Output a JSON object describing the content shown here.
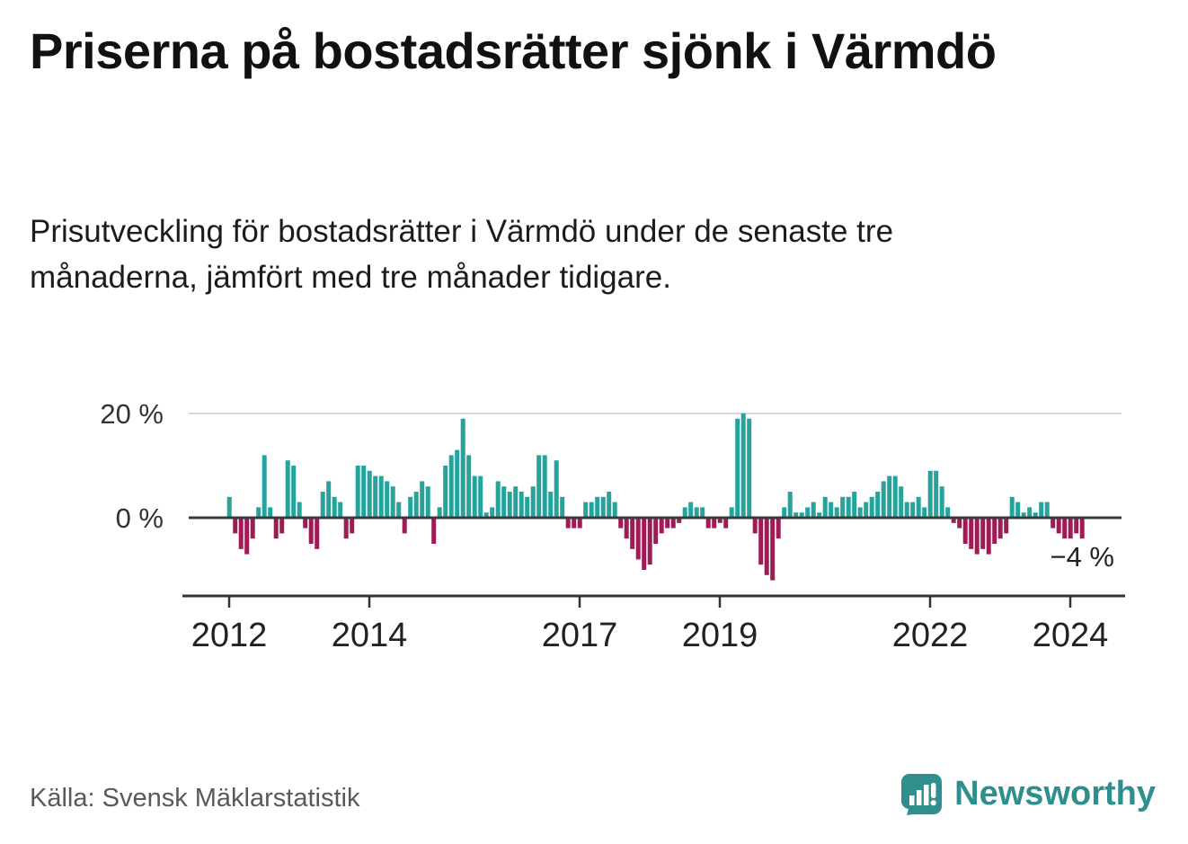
{
  "header": {
    "title": "Priserna på bostadsrätter sjönk i Värmdö",
    "subtitle": "Prisutveckling för bostadsrätter i Värmdö under de senaste tre månaderna, jämfört med tre månader tidigare."
  },
  "chart_data": {
    "type": "bar",
    "title": "Prisutveckling för bostadsrätter i Värmdö, 3 månader jämfört med föregående 3 månader",
    "unit": "%",
    "start_year": 2012,
    "start_month": 1,
    "values": [
      4,
      -3,
      -6,
      -7,
      -4,
      2,
      12,
      2,
      -4,
      -3,
      11,
      10,
      3,
      -2,
      -5,
      -6,
      5,
      7,
      4,
      3,
      -4,
      -3,
      10,
      10,
      9,
      8,
      8,
      7,
      6,
      3,
      -3,
      4,
      5,
      7,
      6,
      -5,
      2,
      10,
      12,
      13,
      19,
      12,
      8,
      8,
      1,
      2,
      7,
      6,
      5,
      6,
      5,
      4,
      6,
      12,
      12,
      5,
      11,
      4,
      -2,
      -2,
      -2,
      3,
      3,
      4,
      4,
      5,
      3,
      -2,
      -4,
      -6,
      -8,
      -10,
      -9,
      -5,
      -3,
      -2,
      -2,
      -1,
      2,
      3,
      2,
      2,
      -2,
      -2,
      -1,
      -2,
      2,
      19,
      20,
      19,
      -3,
      -9,
      -11,
      -12,
      -4,
      2,
      5,
      1,
      1,
      2,
      3,
      1,
      4,
      3,
      2,
      4,
      4,
      5,
      2,
      3,
      4,
      5,
      7,
      8,
      8,
      6,
      3,
      3,
      4,
      2,
      9,
      9,
      6,
      2,
      -1,
      -2,
      -5,
      -6,
      -7,
      -6,
      -7,
      -5,
      -4,
      -3,
      4,
      3,
      1,
      2,
      1,
      3,
      3,
      -2,
      -3,
      -4,
      -4,
      -3,
      -4
    ],
    "ylim": [
      -14,
      22
    ],
    "grid": "single-line-at-20",
    "legend": "none",
    "yticks": [
      {
        "value": 20,
        "label": "20 %"
      },
      {
        "value": 0,
        "label": "0 %"
      }
    ],
    "xticks": [
      {
        "year": 2012,
        "label": "2012"
      },
      {
        "year": 2014,
        "label": "2014"
      },
      {
        "year": 2017,
        "label": "2017"
      },
      {
        "year": 2019,
        "label": "2019"
      },
      {
        "year": 2022,
        "label": "2022"
      },
      {
        "year": 2024,
        "label": "2024"
      }
    ],
    "annotation": {
      "text": "−4 %",
      "value": -4
    },
    "colors": {
      "positive": "#25a39c",
      "negative": "#9e1b55"
    }
  },
  "footer": {
    "source": "Källa: Svensk Mäklarstatistik",
    "brand": "Newsworthy"
  }
}
